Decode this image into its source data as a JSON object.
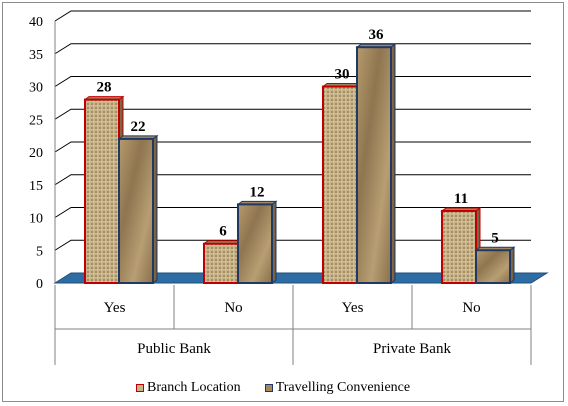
{
  "chart_data": {
    "type": "bar",
    "categories": [
      "Yes",
      "No",
      "Yes",
      "No"
    ],
    "groups": [
      {
        "label": "Public Bank",
        "categories": [
          "Yes",
          "No"
        ]
      },
      {
        "label": "Private Bank",
        "categories": [
          "Yes",
          "No"
        ]
      }
    ],
    "series": [
      {
        "name": "Branch Location",
        "values": [
          28,
          6,
          30,
          11
        ],
        "color": "#c00000",
        "fill": "#c8b48a"
      },
      {
        "name": "Travelling Convenience",
        "values": [
          22,
          12,
          36,
          5
        ],
        "color": "#1f3864",
        "fill": "#a68a5e"
      }
    ],
    "ylim": [
      0,
      40
    ],
    "yticks": [
      0,
      5,
      10,
      15,
      20,
      25,
      30,
      35,
      40
    ],
    "grid": true,
    "legend_position": "bottom",
    "floor_color": "#2e6da4"
  }
}
